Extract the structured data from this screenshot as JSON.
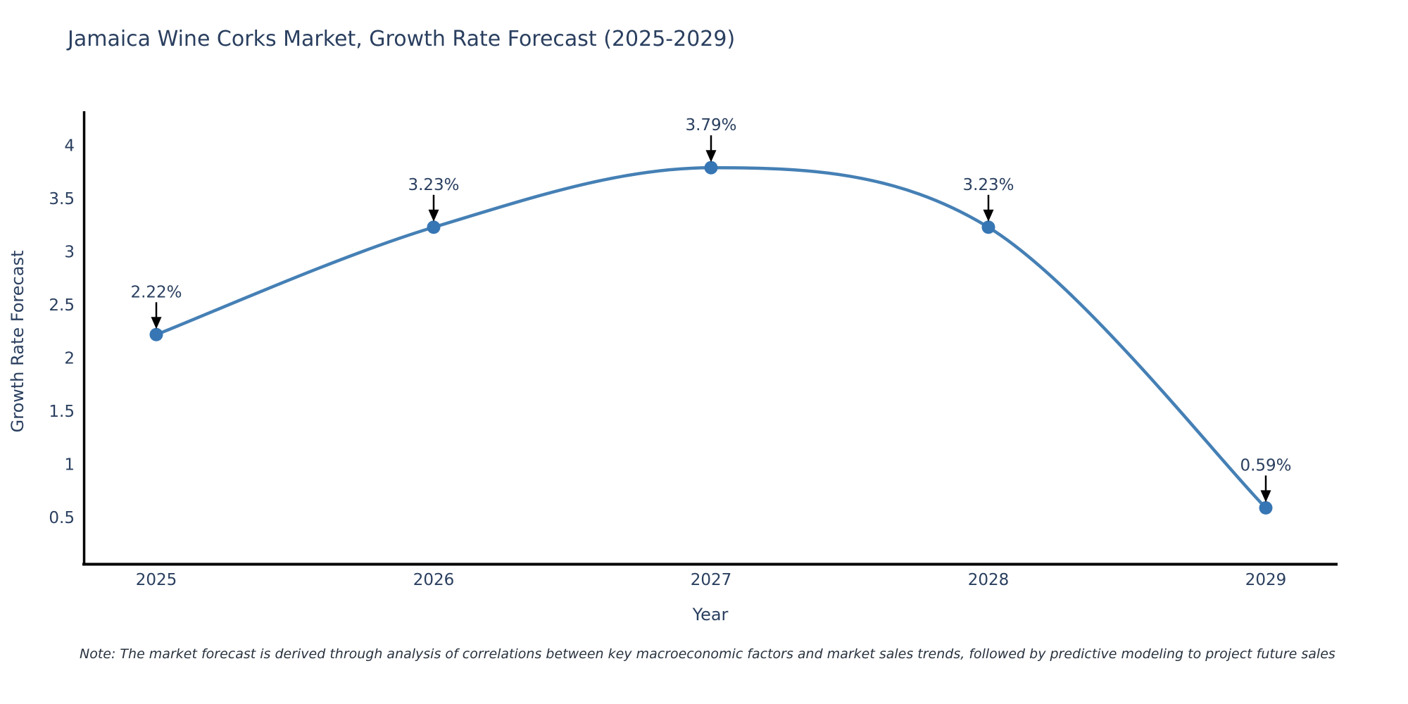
{
  "chart": {
    "title": "Jamaica Wine Corks Market, Growth Rate Forecast (2025-2029)",
    "xlabel": "Year",
    "ylabel": "Growth Rate Forecast",
    "note": "Note: The market forecast is derived through analysis of correlations between key macroeconomic factors and market sales trends, followed by predictive modeling to project future sales"
  },
  "chart_data": {
    "type": "line",
    "title": "Jamaica Wine Corks Market, Growth Rate Forecast (2025-2029)",
    "x": [
      "2025",
      "2026",
      "2027",
      "2028",
      "2029"
    ],
    "values": [
      2.22,
      3.23,
      3.79,
      3.23,
      0.59
    ],
    "point_labels": [
      "2.22%",
      "3.23%",
      "3.79%",
      "3.23%",
      "0.59%"
    ],
    "xlabel": "Year",
    "ylabel": "Growth Rate Forecast",
    "yticks": [
      0.5,
      1,
      1.5,
      2,
      2.5,
      3,
      3.5,
      4
    ],
    "ylim": [
      0.05,
      4.32
    ],
    "grid": false,
    "legend": "none",
    "line_shape": "spline",
    "colors": {
      "line": "#4580b5",
      "marker": "#3776b4",
      "axis": "#000000",
      "text": "#2a3f5f",
      "arrow": "#000000"
    }
  }
}
